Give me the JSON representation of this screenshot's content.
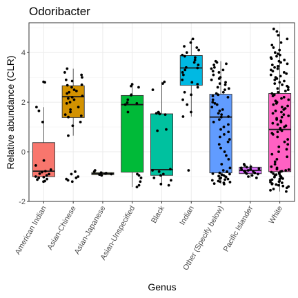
{
  "chart_data": {
    "type": "box",
    "title": "Odoribacter",
    "xlabel": "Genus",
    "ylabel": "Relative abundance (CLR)",
    "ylim": [
      -2,
      5.2
    ],
    "yticks": [
      -2,
      0,
      2,
      4
    ],
    "grid": true,
    "legend": "none",
    "categories": [
      "American Indian",
      "Asian-Chinese",
      "Asian-Japanese",
      "Asian-Unspecified",
      "Black",
      "Indian",
      "Other (Specify below)",
      "Pacific Islander",
      "White"
    ],
    "boxes": [
      {
        "category": "American Indian",
        "color": "#F8766D",
        "whisker_low": -1.05,
        "q1": -1.0,
        "median": -0.78,
        "q3": 0.37,
        "whisker_high": 1.8,
        "points": [
          2.82,
          2.8,
          1.8,
          1.65,
          1.2,
          -0.35,
          -0.55,
          -0.72,
          -0.78,
          -0.82,
          -0.88,
          -0.9,
          -0.95,
          -1.0,
          -1.02,
          -1.05,
          -1.1,
          -1.12,
          -1.18,
          -1.2
        ]
      },
      {
        "category": "Asian-Chinese",
        "color": "#D39200",
        "whisker_low": 0.65,
        "q1": 1.38,
        "median": 2.22,
        "q3": 2.66,
        "whisker_high": 3.35,
        "points": [
          3.35,
          3.2,
          3.1,
          3.0,
          2.9,
          2.85,
          2.7,
          2.68,
          2.6,
          2.5,
          2.45,
          2.4,
          2.35,
          2.25,
          2.2,
          2.15,
          2.1,
          2.0,
          1.95,
          1.8,
          1.7,
          1.6,
          1.5,
          1.45,
          1.4,
          1.2,
          1.05,
          0.65,
          -0.8,
          -0.9,
          -1.0,
          -1.05,
          -1.1,
          -1.15,
          -1.2
        ]
      },
      {
        "category": "Asian-Japanese",
        "color": "#93AA00",
        "whisker_low": -0.95,
        "q1": -0.92,
        "median": -0.88,
        "q3": -0.84,
        "whisker_high": -0.8,
        "points": [
          -0.75,
          -0.8,
          -0.84,
          -0.86,
          -0.88,
          -0.9,
          -0.92,
          -0.95
        ]
      },
      {
        "category": "Asian-Unspecified",
        "color": "#00BA38",
        "whisker_low": -1.42,
        "q1": -0.82,
        "median": 1.9,
        "q3": 2.27,
        "whisker_high": 2.72,
        "points": [
          2.72,
          2.65,
          2.6,
          2.3,
          2.28,
          2.1,
          1.98,
          1.95,
          1.9,
          1.6,
          -0.9,
          -0.95,
          -1.05,
          -1.2,
          -1.35,
          -1.42
        ]
      },
      {
        "category": "Black",
        "color": "#00C19F",
        "whisker_low": -1.35,
        "q1": -0.95,
        "median": -0.72,
        "q3": 1.53,
        "whisker_high": 2.82,
        "points": [
          2.82,
          2.75,
          2.5,
          1.6,
          1.55,
          1.55,
          1.52,
          1.5,
          0.9,
          0.85,
          -0.7,
          -0.75,
          -0.8,
          -0.9,
          -0.95,
          -1.05,
          -1.15,
          -1.3,
          -1.35
        ]
      },
      {
        "category": "Indian",
        "color": "#00B9E3",
        "whisker_low": 1.42,
        "q1": 2.68,
        "median": 3.38,
        "q3": 3.88,
        "whisker_high": 4.55,
        "points": [
          4.55,
          4.4,
          4.25,
          4.2,
          4.1,
          4.0,
          3.9,
          3.85,
          3.8,
          3.7,
          3.6,
          3.5,
          3.4,
          3.38,
          3.3,
          3.2,
          3.1,
          2.9,
          2.8,
          2.72,
          2.6,
          2.4,
          2.3,
          2.1,
          1.9,
          1.6,
          1.42,
          -0.75
        ]
      },
      {
        "category": "Other (Specify below)",
        "color": "#619CFF",
        "whisker_low": -1.3,
        "q1": -0.85,
        "median": 1.4,
        "q3": 2.32,
        "whisker_high": 3.65,
        "points": [
          3.65,
          3.6,
          3.55,
          3.5,
          3.4,
          3.35,
          3.3,
          3.25,
          3.2,
          3.1,
          3.0,
          2.95,
          2.9,
          2.8,
          2.75,
          2.7,
          2.6,
          2.55,
          2.5,
          2.4,
          2.35,
          2.3,
          2.25,
          2.2,
          2.1,
          2.0,
          1.95,
          1.9,
          1.8,
          1.7,
          1.65,
          1.55,
          1.5,
          1.42,
          1.4,
          1.3,
          1.2,
          1.1,
          1.0,
          0.9,
          0.8,
          0.7,
          0.6,
          0.5,
          0.4,
          0.3,
          0.15,
          0.0,
          -0.15,
          -0.3,
          -0.5,
          -0.65,
          -0.75,
          -0.8,
          -0.85,
          -0.88,
          -0.9,
          -0.92,
          -0.95,
          -0.98,
          -1.0,
          -1.02,
          -1.05,
          -1.08,
          -1.1,
          -1.12,
          -1.15,
          -1.18,
          -1.2,
          -1.22,
          -1.25,
          -1.28,
          -1.3
        ]
      },
      {
        "category": "Pacific Islander",
        "color": "#DB72FB",
        "whisker_low": -1.05,
        "q1": -0.88,
        "median": -0.75,
        "q3": -0.62,
        "whisker_high": -0.5,
        "points": [
          -0.5,
          -0.55,
          -0.6,
          -0.62,
          -0.65,
          -0.68,
          -0.7,
          -0.72,
          -0.75,
          -0.78,
          -0.8,
          -0.82,
          -0.85,
          -0.88,
          -0.9,
          -0.95,
          -1.0,
          -1.05
        ]
      },
      {
        "category": "White",
        "color": "#FF61C3",
        "whisker_low": -1.6,
        "q1": -0.8,
        "median": 0.9,
        "q3": 2.35,
        "whisker_high": 4.85,
        "points": [
          4.95,
          4.85,
          4.7,
          4.55,
          4.4,
          4.3,
          4.2,
          4.1,
          4.0,
          3.95,
          3.9,
          3.85,
          3.8,
          3.75,
          3.7,
          3.65,
          3.6,
          3.55,
          3.5,
          3.45,
          3.4,
          3.35,
          3.3,
          3.25,
          3.2,
          3.15,
          3.1,
          3.05,
          3.0,
          2.95,
          2.9,
          2.85,
          2.8,
          2.75,
          2.7,
          2.65,
          2.6,
          2.55,
          2.5,
          2.45,
          2.4,
          2.35,
          2.3,
          2.25,
          2.2,
          2.15,
          2.1,
          2.05,
          2.0,
          1.95,
          1.9,
          1.85,
          1.8,
          1.75,
          1.7,
          1.65,
          1.6,
          1.55,
          1.5,
          1.45,
          1.4,
          1.35,
          1.3,
          1.25,
          1.2,
          1.15,
          1.1,
          1.05,
          1.0,
          0.95,
          0.9,
          0.85,
          0.8,
          0.75,
          0.7,
          0.6,
          0.5,
          0.4,
          0.3,
          0.2,
          0.1,
          0.0,
          -0.1,
          -0.2,
          -0.3,
          -0.4,
          -0.5,
          -0.6,
          -0.65,
          -0.7,
          -0.72,
          -0.75,
          -0.78,
          -0.8,
          -0.82,
          -0.85,
          -0.88,
          -0.9,
          -0.92,
          -0.95,
          -0.98,
          -1.0,
          -1.02,
          -1.05,
          -1.08,
          -1.1,
          -1.12,
          -1.15,
          -1.18,
          -1.2,
          -1.22,
          -1.25,
          -1.28,
          -1.3,
          -1.32,
          -1.35,
          -1.38,
          -1.4,
          -1.45,
          -1.5,
          -1.55,
          -1.6
        ]
      }
    ]
  }
}
